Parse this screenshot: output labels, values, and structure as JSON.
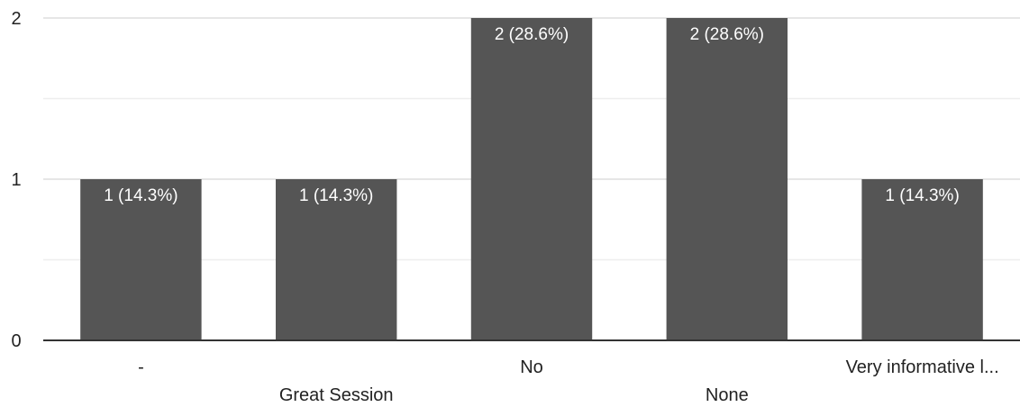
{
  "chart_data": {
    "type": "bar",
    "categories": [
      "-",
      "Great Session",
      "No",
      "None",
      "Very informative l..."
    ],
    "values": [
      1,
      1,
      2,
      2,
      1
    ],
    "data_labels": [
      "1 (14.3%)",
      "1 (14.3%)",
      "2 (28.6%)",
      "2 (28.6%)",
      "1 (14.3%)"
    ],
    "y_ticks": [
      "0",
      "1",
      "2"
    ],
    "ylim": [
      0,
      2
    ],
    "grid": true,
    "bar_color": "#555555",
    "gridline_color": "#dddddd",
    "axis_color": "#333333"
  }
}
